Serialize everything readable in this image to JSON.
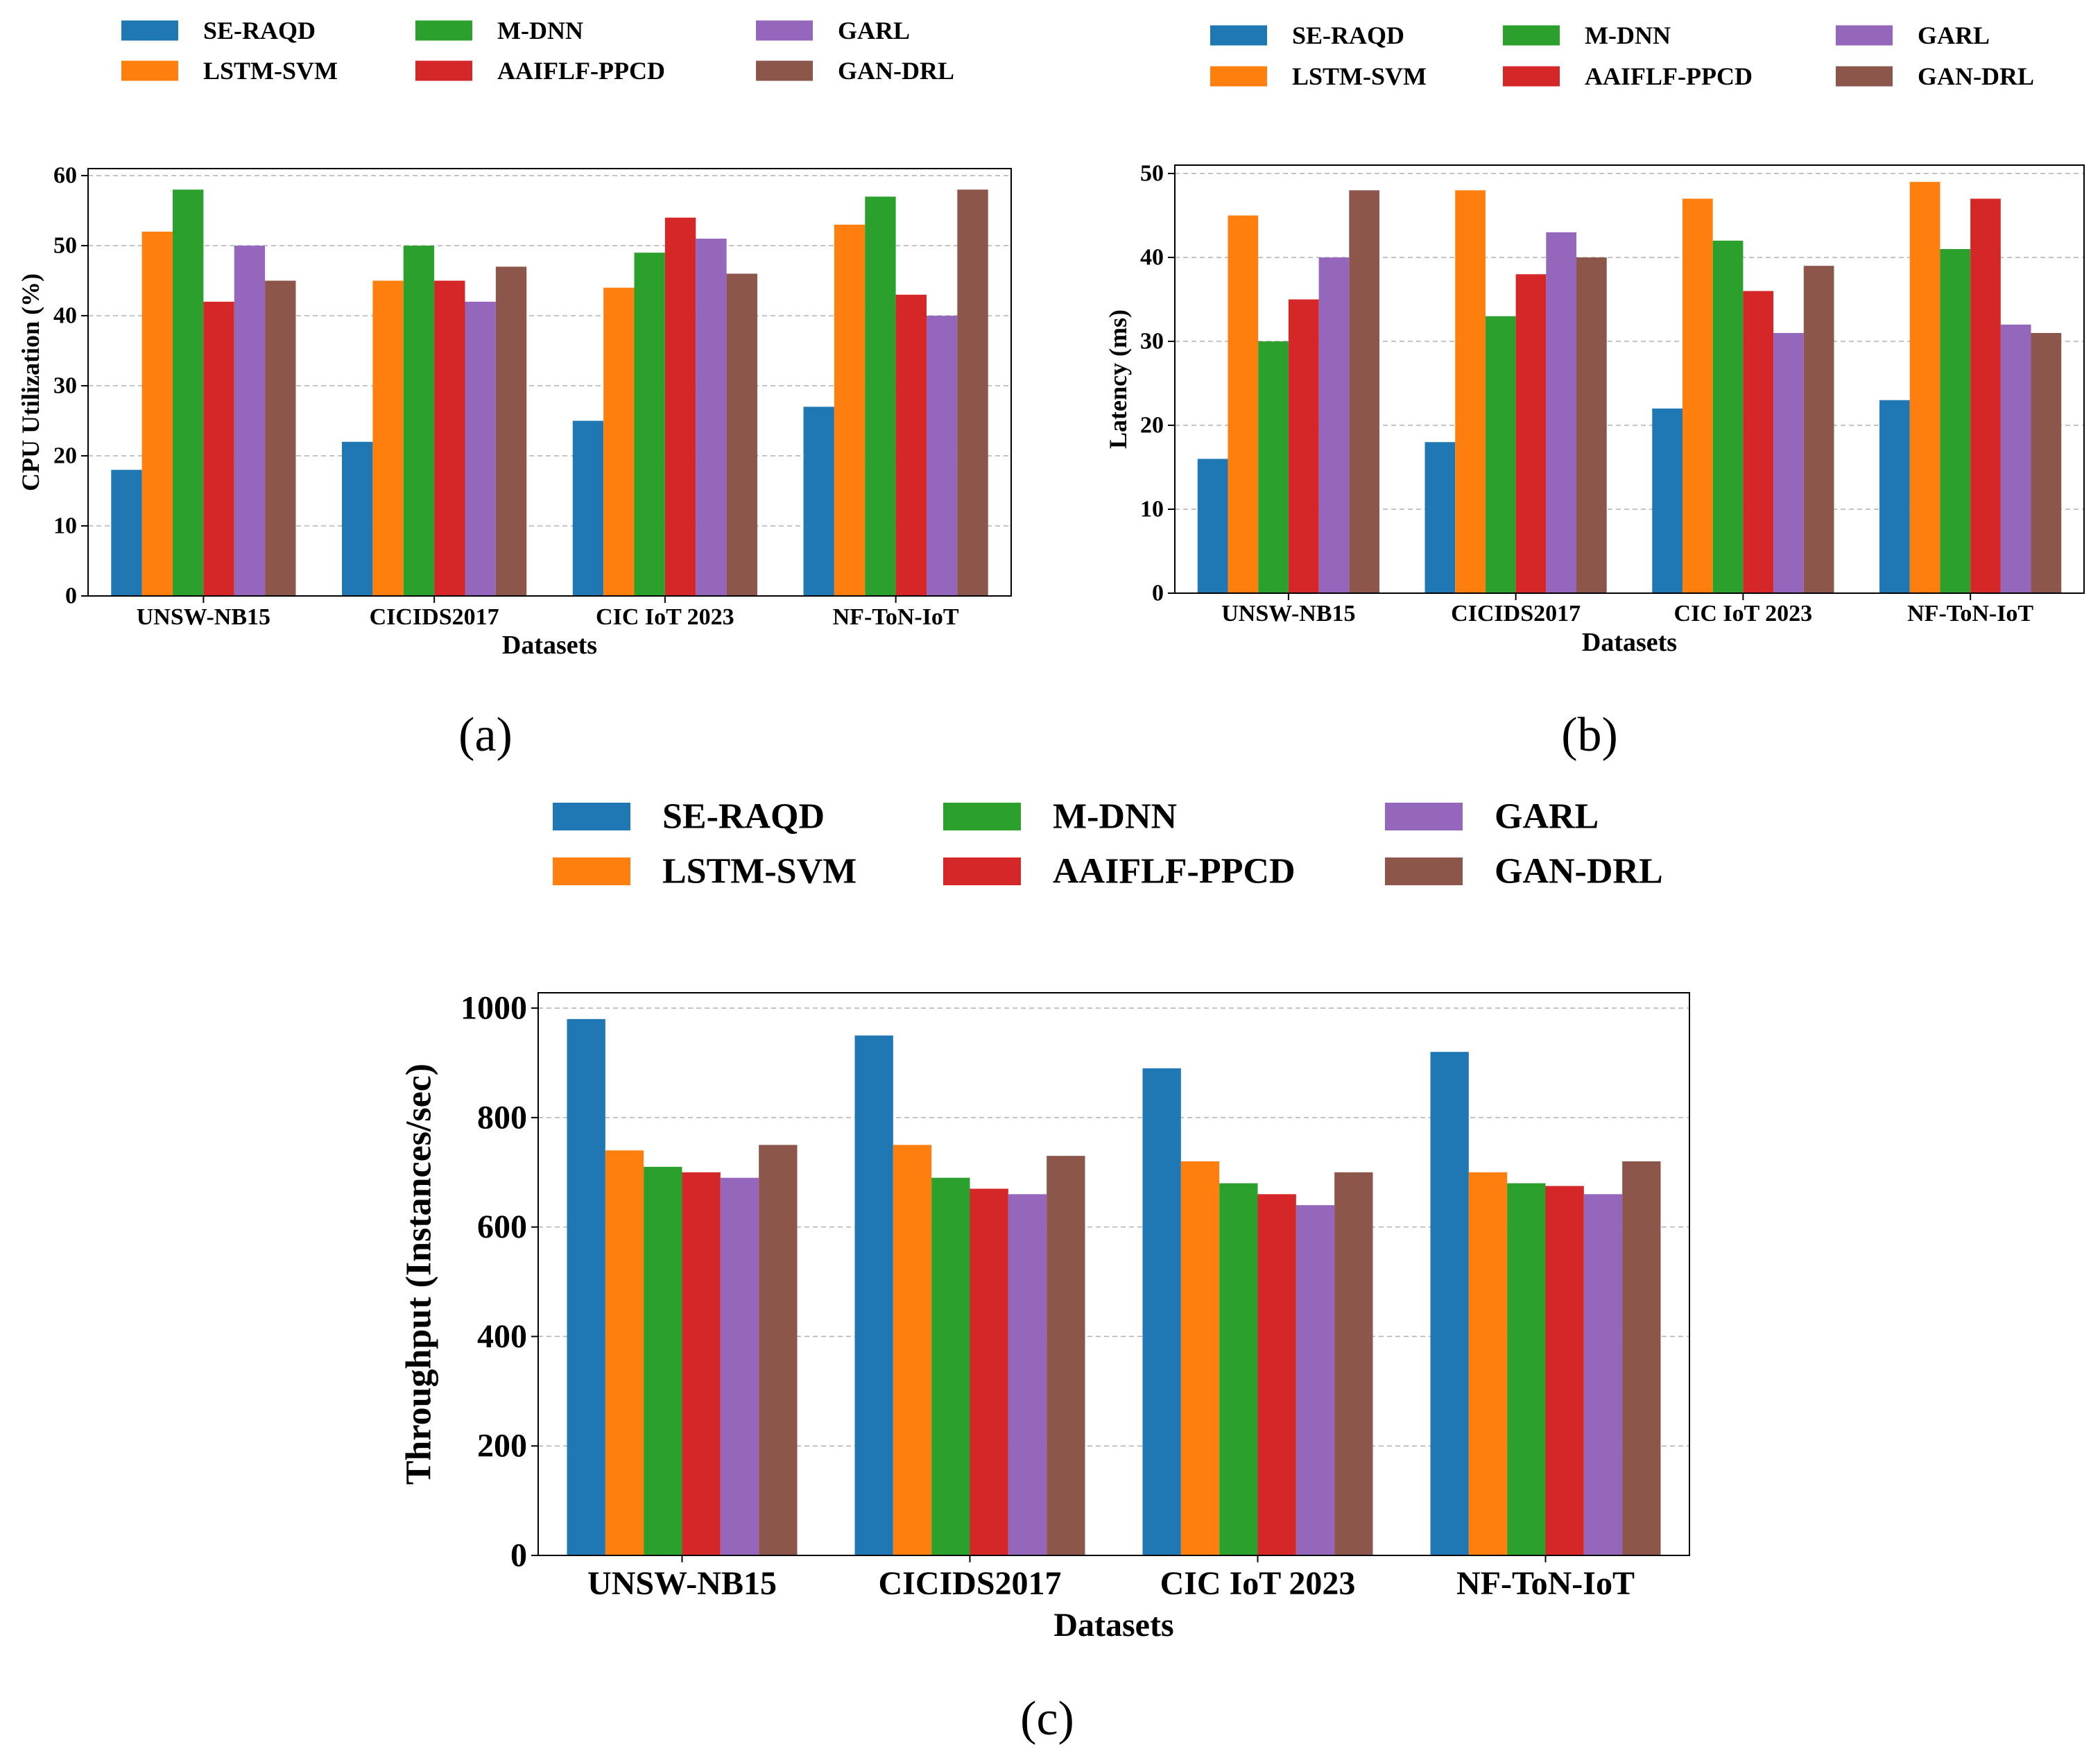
{
  "colors": {
    "SE-RAQD": "#1f77b4",
    "LSTM-SVM": "#ff7f0e",
    "M-DNN": "#2ca02c",
    "AAIFLF-PPCD": "#d62728",
    "GARL": "#9467bd",
    "GAN-DRL": "#8c564b",
    "grid": "#b0b0b0",
    "axis": "#000000"
  },
  "legend_order": [
    "SE-RAQD",
    "M-DNN",
    "GARL",
    "LSTM-SVM",
    "AAIFLF-PPCD",
    "GAN-DRL"
  ],
  "chart_data": [
    {
      "id": "a",
      "type": "bar",
      "panel_label": "(a)",
      "title": "",
      "xlabel": "Datasets",
      "ylabel": "CPU Utilization (%)",
      "categories": [
        "UNSW-NB15",
        "CICIDS2017",
        "CIC IoT 2023",
        "NF-ToN-IoT"
      ],
      "ylim": [
        0,
        61
      ],
      "yticks": [
        0,
        10,
        20,
        30,
        40,
        50,
        60
      ],
      "grid": "y-dashed",
      "legend": "top, 3 columns, outside",
      "series": [
        {
          "name": "SE-RAQD",
          "values": [
            18,
            22,
            25,
            27
          ]
        },
        {
          "name": "LSTM-SVM",
          "values": [
            52,
            45,
            44,
            53
          ]
        },
        {
          "name": "M-DNN",
          "values": [
            58,
            50,
            49,
            57
          ]
        },
        {
          "name": "AAIFLF-PPCD",
          "values": [
            42,
            45,
            54,
            43
          ]
        },
        {
          "name": "GARL",
          "values": [
            50,
            42,
            51,
            40
          ]
        },
        {
          "name": "GAN-DRL",
          "values": [
            45,
            47,
            46,
            58
          ]
        }
      ]
    },
    {
      "id": "b",
      "type": "bar",
      "panel_label": "(b)",
      "title": "",
      "xlabel": "Datasets",
      "ylabel": "Latency (ms)",
      "categories": [
        "UNSW-NB15",
        "CICIDS2017",
        "CIC IoT 2023",
        "NF-ToN-IoT"
      ],
      "ylim": [
        0,
        51
      ],
      "yticks": [
        0,
        10,
        20,
        30,
        40,
        50
      ],
      "grid": "y-dashed",
      "legend": "top, 3 columns, outside",
      "series": [
        {
          "name": "SE-RAQD",
          "values": [
            16,
            18,
            22,
            23
          ]
        },
        {
          "name": "LSTM-SVM",
          "values": [
            45,
            48,
            47,
            49
          ]
        },
        {
          "name": "M-DNN",
          "values": [
            30,
            33,
            42,
            41
          ]
        },
        {
          "name": "AAIFLF-PPCD",
          "values": [
            35,
            38,
            36,
            47
          ]
        },
        {
          "name": "GARL",
          "values": [
            40,
            43,
            31,
            32
          ]
        },
        {
          "name": "GAN-DRL",
          "values": [
            48,
            40,
            39,
            31
          ]
        }
      ]
    },
    {
      "id": "c",
      "type": "bar",
      "panel_label": "(c)",
      "title": "",
      "xlabel": "Datasets",
      "ylabel": "Throughput (Instances/sec)",
      "categories": [
        "UNSW-NB15",
        "CICIDS2017",
        "CIC IoT 2023",
        "NF-ToN-IoT"
      ],
      "ylim": [
        0,
        1028
      ],
      "yticks": [
        0,
        200,
        400,
        600,
        800,
        1000
      ],
      "grid": "y-dashed",
      "legend": "top, 3 columns, outside",
      "series": [
        {
          "name": "SE-RAQD",
          "values": [
            980,
            950,
            890,
            920
          ]
        },
        {
          "name": "LSTM-SVM",
          "values": [
            740,
            750,
            720,
            700
          ]
        },
        {
          "name": "M-DNN",
          "values": [
            710,
            690,
            680,
            680
          ]
        },
        {
          "name": "AAIFLF-PPCD",
          "values": [
            700,
            670,
            660,
            675
          ]
        },
        {
          "name": "GARL",
          "values": [
            690,
            660,
            640,
            660
          ]
        },
        {
          "name": "GAN-DRL",
          "values": [
            750,
            730,
            700,
            720
          ]
        }
      ]
    }
  ]
}
